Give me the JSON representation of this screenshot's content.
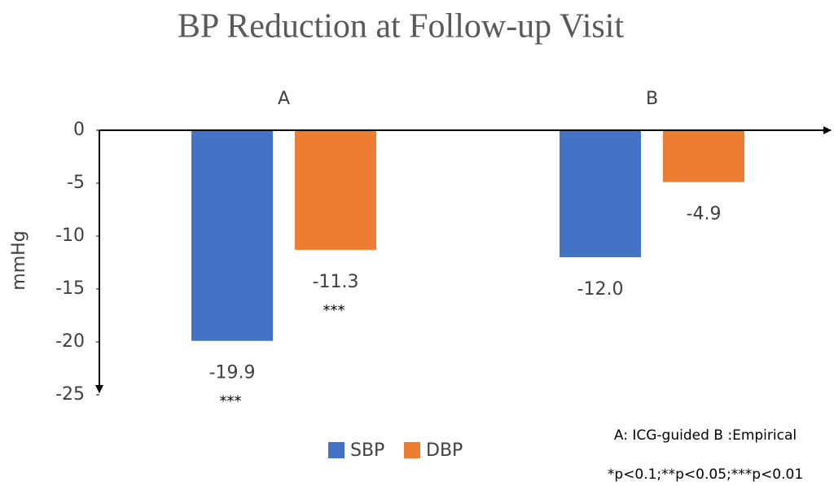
{
  "chart_data": {
    "type": "bar",
    "title": "BP Reduction at Follow-up Visit",
    "y_label": "mmHg",
    "categories": [
      "A",
      "B"
    ],
    "series": [
      {
        "name": "SBP",
        "color": "#4472c4",
        "values": [
          -19.9,
          -12
        ],
        "value_labels": [
          "-19.9",
          "-12.0"
        ],
        "significance": [
          "***",
          null
        ]
      },
      {
        "name": "DBP",
        "color": "#ed7d31",
        "values": [
          -11.3,
          -4.9
        ],
        "value_labels": [
          "-11.3",
          "-4.9"
        ],
        "significance": [
          "***",
          null
        ]
      }
    ],
    "ylim": [
      0,
      -25
    ],
    "yticks": [
      0,
      -5,
      -10,
      -15,
      -20,
      -25
    ],
    "legend": "bottom",
    "notes": [
      "A: ICG-guided  B :Empirical",
      "*p<0.1;**p<0.05;***p<0.01"
    ]
  }
}
